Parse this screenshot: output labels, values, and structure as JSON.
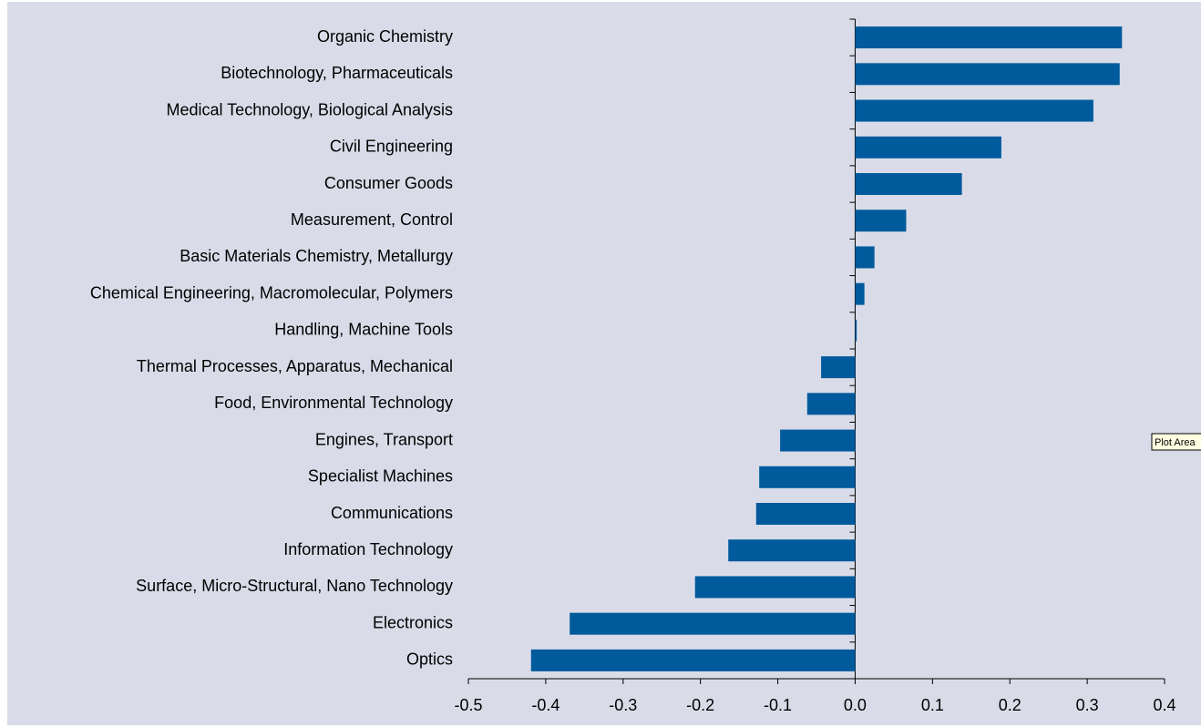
{
  "chart_data": {
    "type": "bar",
    "orientation": "horizontal",
    "categories": [
      "Organic Chemistry",
      "Biotechnology, Pharmaceuticals",
      "Medical Technology, Biological Analysis",
      "Civil Engineering",
      "Consumer Goods",
      "Measurement, Control",
      "Basic Materials Chemistry, Metallurgy",
      "Chemical Engineering, Macromolecular, Polymers",
      "Handling, Machine Tools",
      "Thermal Processes, Apparatus, Mechanical",
      "Food, Environmental Technology",
      "Engines, Transport",
      "Specialist Machines",
      "Communications",
      "Information Technology",
      "Surface, Micro-Structural, Nano Technology",
      "Electronics",
      "Optics"
    ],
    "values": [
      0.345,
      0.342,
      0.308,
      0.189,
      0.138,
      0.066,
      0.025,
      0.012,
      0.002,
      -0.044,
      -0.062,
      -0.097,
      -0.124,
      -0.128,
      -0.164,
      -0.207,
      -0.369,
      -0.419
    ],
    "color": "#005a9c",
    "xlim": [
      -0.5,
      0.4
    ],
    "xticks": [
      -0.5,
      -0.4,
      -0.3,
      -0.2,
      -0.1,
      {
        "value": 0,
        "label": "0.0"
      },
      0.1,
      0.2,
      0.3,
      0.4
    ],
    "grid": false,
    "tooltip": "Plot Area"
  }
}
